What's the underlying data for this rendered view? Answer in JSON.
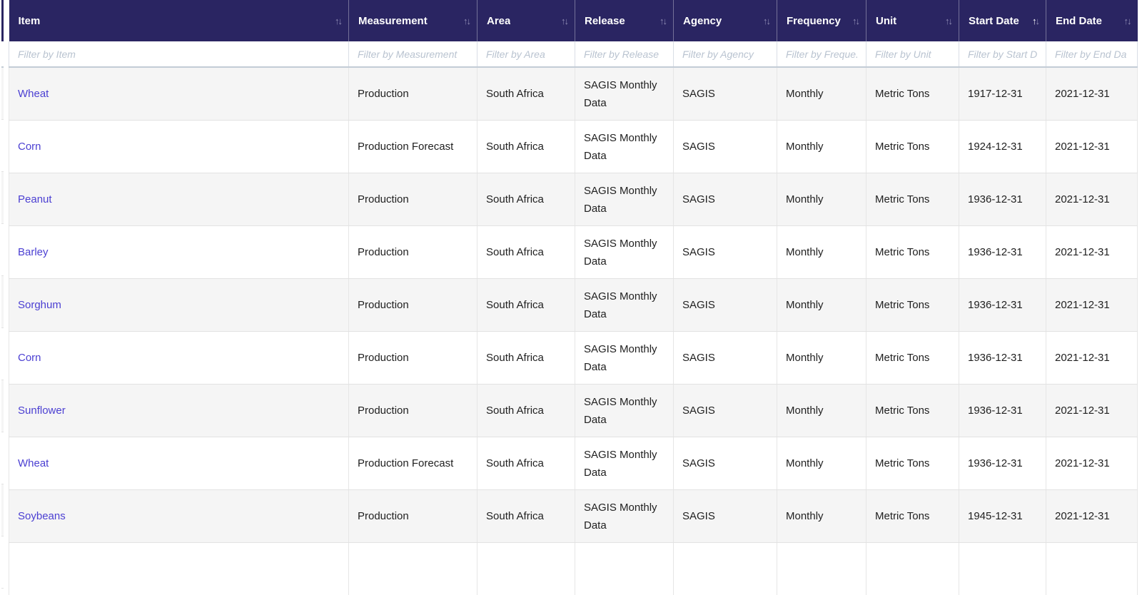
{
  "table": {
    "columns": [
      {
        "key": "item",
        "label": "Item",
        "sort": "none",
        "filter_placeholder": "Filter by Item"
      },
      {
        "key": "measurement",
        "label": "Measurement",
        "sort": "none",
        "filter_placeholder": "Filter by Measurement"
      },
      {
        "key": "area",
        "label": "Area",
        "sort": "none",
        "filter_placeholder": "Filter by Area"
      },
      {
        "key": "release",
        "label": "Release",
        "sort": "none",
        "filter_placeholder": "Filter by Release"
      },
      {
        "key": "agency",
        "label": "Agency",
        "sort": "none",
        "filter_placeholder": "Filter by Agency"
      },
      {
        "key": "frequency",
        "label": "Frequency",
        "sort": "none",
        "filter_placeholder": "Filter by Freque."
      },
      {
        "key": "unit",
        "label": "Unit",
        "sort": "none",
        "filter_placeholder": "Filter by Unit"
      },
      {
        "key": "start_date",
        "label": "Start Date",
        "sort": "asc",
        "filter_placeholder": "Filter by Start D"
      },
      {
        "key": "end_date",
        "label": "End Date",
        "sort": "none",
        "filter_placeholder": "Filter by End Da"
      }
    ],
    "rows": [
      {
        "item": "Wheat",
        "measurement": "Production",
        "area": "South Africa",
        "release": "SAGIS Monthly Data",
        "agency": "SAGIS",
        "frequency": "Monthly",
        "unit": "Metric Tons",
        "start_date": "1917-12-31",
        "end_date": "2021-12-31"
      },
      {
        "item": "Corn",
        "measurement": "Production Forecast",
        "area": "South Africa",
        "release": "SAGIS Monthly Data",
        "agency": "SAGIS",
        "frequency": "Monthly",
        "unit": "Metric Tons",
        "start_date": "1924-12-31",
        "end_date": "2021-12-31"
      },
      {
        "item": "Peanut",
        "measurement": "Production",
        "area": "South Africa",
        "release": "SAGIS Monthly Data",
        "agency": "SAGIS",
        "frequency": "Monthly",
        "unit": "Metric Tons",
        "start_date": "1936-12-31",
        "end_date": "2021-12-31"
      },
      {
        "item": "Barley",
        "measurement": "Production",
        "area": "South Africa",
        "release": "SAGIS Monthly Data",
        "agency": "SAGIS",
        "frequency": "Monthly",
        "unit": "Metric Tons",
        "start_date": "1936-12-31",
        "end_date": "2021-12-31"
      },
      {
        "item": "Sorghum",
        "measurement": "Production",
        "area": "South Africa",
        "release": "SAGIS Monthly Data",
        "agency": "SAGIS",
        "frequency": "Monthly",
        "unit": "Metric Tons",
        "start_date": "1936-12-31",
        "end_date": "2021-12-31"
      },
      {
        "item": "Corn",
        "measurement": "Production",
        "area": "South Africa",
        "release": "SAGIS Monthly Data",
        "agency": "SAGIS",
        "frequency": "Monthly",
        "unit": "Metric Tons",
        "start_date": "1936-12-31",
        "end_date": "2021-12-31"
      },
      {
        "item": "Sunflower",
        "measurement": "Production",
        "area": "South Africa",
        "release": "SAGIS Monthly Data",
        "agency": "SAGIS",
        "frequency": "Monthly",
        "unit": "Metric Tons",
        "start_date": "1936-12-31",
        "end_date": "2021-12-31"
      },
      {
        "item": "Wheat",
        "measurement": "Production Forecast",
        "area": "South Africa",
        "release": "SAGIS Monthly Data",
        "agency": "SAGIS",
        "frequency": "Monthly",
        "unit": "Metric Tons",
        "start_date": "1936-12-31",
        "end_date": "2021-12-31"
      },
      {
        "item": "Soybeans",
        "measurement": "Production",
        "area": "South Africa",
        "release": "SAGIS Monthly Data",
        "agency": "SAGIS",
        "frequency": "Monthly",
        "unit": "Metric Tons",
        "start_date": "1945-12-31",
        "end_date": "2021-12-31"
      }
    ]
  },
  "glyphs": {
    "sort_up": "↑",
    "sort_down": "↓"
  },
  "colors": {
    "header_bg": "#2a2562",
    "link": "#4b3fd2",
    "row_stripe": "#f5f5f5",
    "filter_bottom_border": "#c3ccd6",
    "placeholder": "#b9c3d0",
    "row_border": "#e2e2e2"
  }
}
